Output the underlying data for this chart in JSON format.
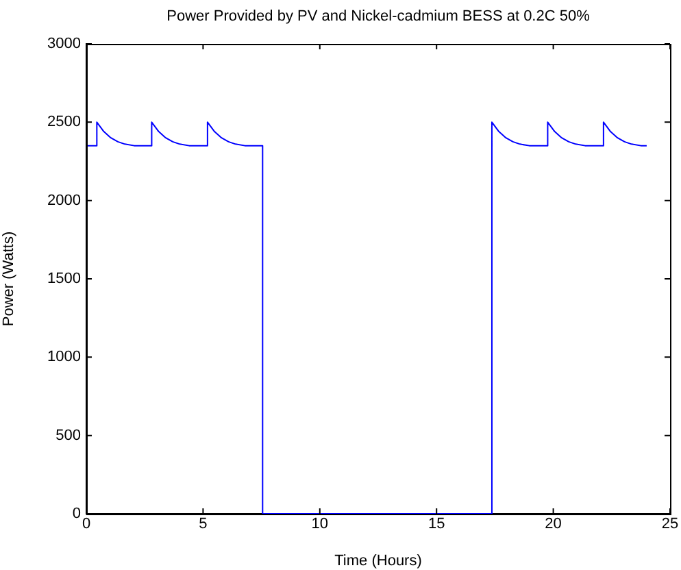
{
  "chart_data": {
    "type": "line",
    "title": "Power Provided by PV and Nickel-cadmium BESS at 0.2C 50%",
    "xlabel": "Time (Hours)",
    "ylabel": "Power (Watts)",
    "x": [
      0,
      0.45,
      0.45,
      0.75,
      1.05,
      1.35,
      1.65,
      2.05,
      2.8,
      2.8,
      3.1,
      3.4,
      3.7,
      4.0,
      4.4,
      5.19,
      5.19,
      5.49,
      5.79,
      6.09,
      6.39,
      6.79,
      7.55,
      7.55,
      17.37,
      17.37,
      17.67,
      17.97,
      18.27,
      18.57,
      18.97,
      19.76,
      19.76,
      20.06,
      20.36,
      20.66,
      20.96,
      21.36,
      22.15,
      22.15,
      22.45,
      22.75,
      23.05,
      23.35,
      23.75,
      24.0
    ],
    "series": [
      {
        "color": "#0000ff",
        "values": [
          2350,
          2350,
          2500,
          2440,
          2400,
          2375,
          2360,
          2350,
          2350,
          2500,
          2440,
          2400,
          2375,
          2360,
          2350,
          2350,
          2500,
          2440,
          2400,
          2375,
          2360,
          2350,
          2350,
          0,
          0,
          2500,
          2440,
          2400,
          2375,
          2360,
          2350,
          2350,
          2500,
          2440,
          2400,
          2375,
          2360,
          2350,
          2350,
          2500,
          2440,
          2400,
          2375,
          2360,
          2350,
          2350
        ]
      }
    ],
    "xlim": [
      0,
      25
    ],
    "xticks": [
      0,
      5,
      10,
      15,
      20,
      25
    ],
    "ylim": [
      0,
      3000
    ],
    "yticks": [
      0,
      500,
      1000,
      1500,
      2000,
      2500,
      3000
    ],
    "grid": false,
    "legend": false,
    "marker": "none",
    "line_style": "solid"
  }
}
